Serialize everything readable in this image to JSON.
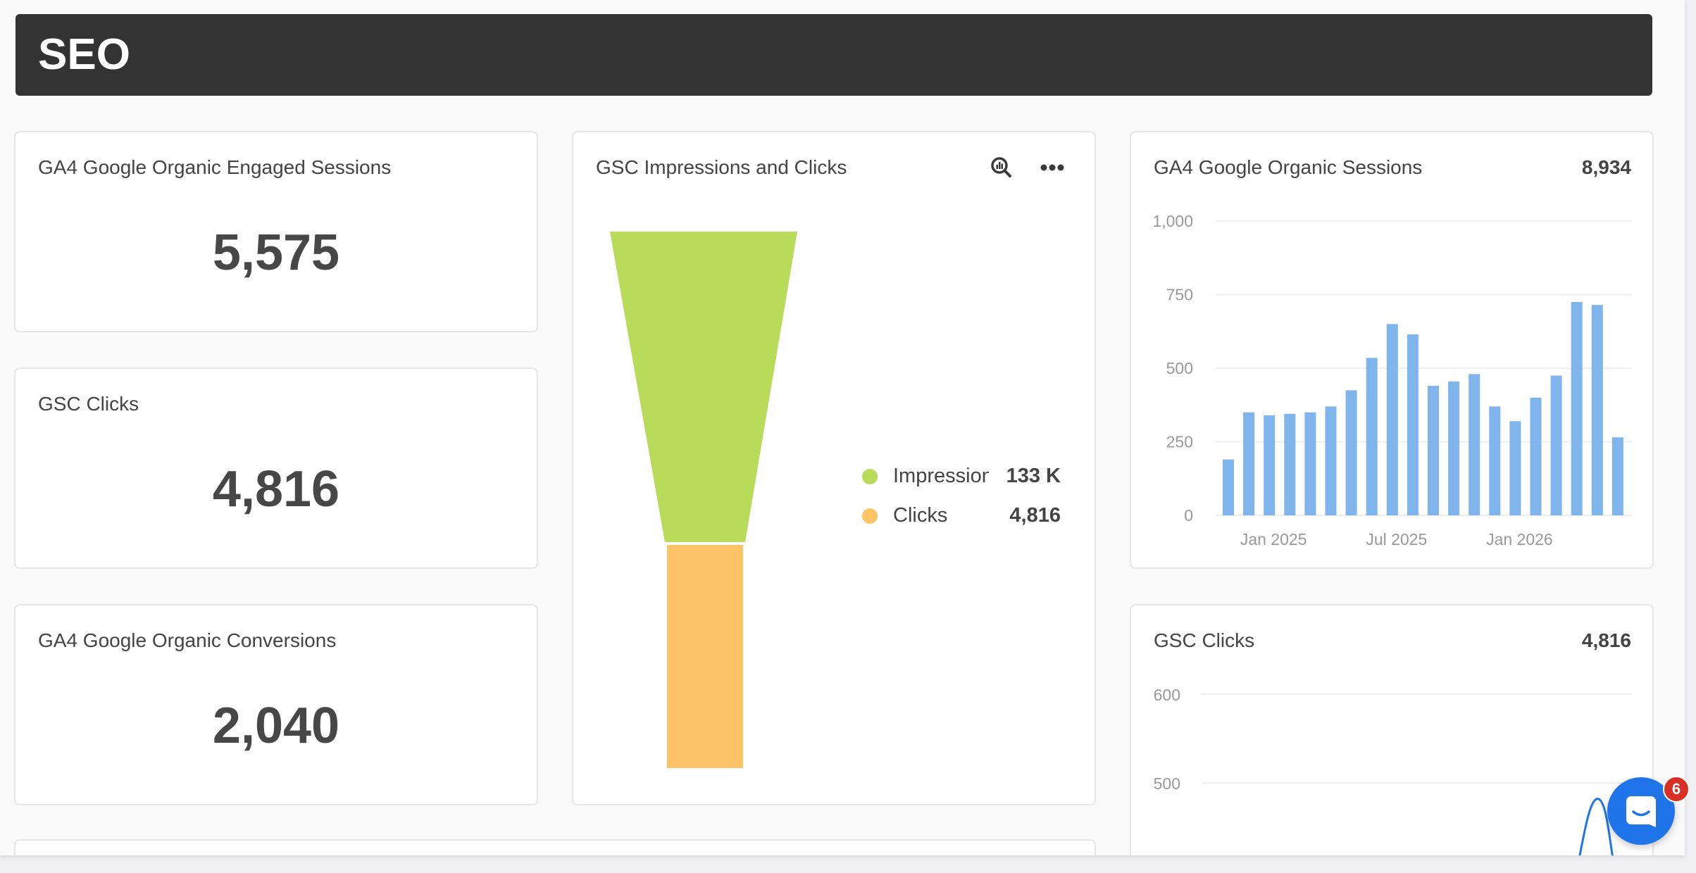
{
  "header": {
    "title": "SEO"
  },
  "cards": {
    "engaged_sessions": {
      "title": "GA4 Google Organic Engaged Sessions",
      "value": "5,575"
    },
    "gsc_clicks": {
      "title": "GSC Clicks",
      "value": "4,816"
    },
    "conversions": {
      "title": "GA4 Google Organic Conversions",
      "value": "2,040"
    }
  },
  "funnel": {
    "title": "GSC Impressions and Clicks",
    "icons": [
      "zoom-chart-icon",
      "more-icon"
    ],
    "chart_data": {
      "type": "funnel",
      "stages": [
        {
          "name": "Impression",
          "display": "133 K",
          "value": 133000,
          "color": "#b8dc5a"
        },
        {
          "name": "Clicks",
          "display": "4,816",
          "value": 4816,
          "color": "#fcc466"
        }
      ]
    }
  },
  "sessions_chart": {
    "title": "GA4 Google Organic Sessions",
    "total": "8,934",
    "chart_data": {
      "type": "bar",
      "color": "#7fb5ec",
      "y_ticks": [
        "1,000",
        "750",
        "500",
        "250",
        "0"
      ],
      "ylim": [
        0,
        1000
      ],
      "x_labels": [
        "Jan 2025",
        "Jul 2025",
        "Jan 2026"
      ],
      "x_label_index": [
        2,
        8,
        14
      ],
      "values": [
        190,
        350,
        340,
        345,
        350,
        370,
        425,
        535,
        650,
        615,
        440,
        455,
        480,
        370,
        320,
        400,
        475,
        725,
        715,
        265
      ]
    }
  },
  "clicks_chart": {
    "title": "GSC Clicks",
    "total": "4,816",
    "chart_data": {
      "type": "bar",
      "y_ticks": [
        "600",
        "500"
      ]
    }
  },
  "chat": {
    "badge": "6"
  }
}
